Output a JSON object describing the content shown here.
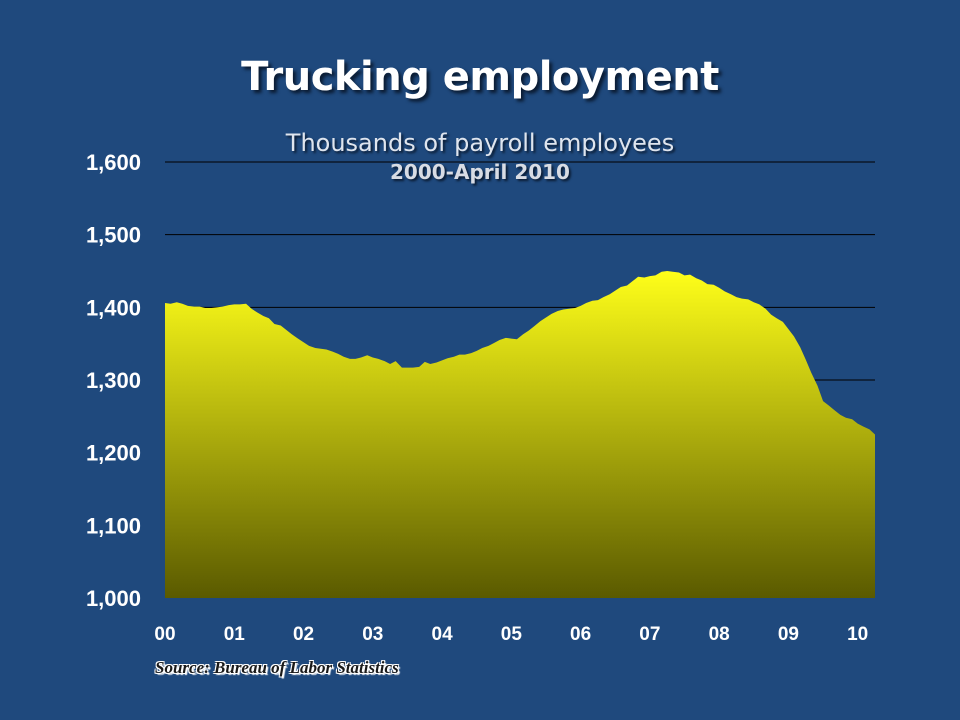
{
  "chart_data": {
    "type": "area",
    "title": "Trucking employment",
    "subtitle": "Thousands of payroll employees",
    "subtitle2": "2000-April 2010",
    "source": "Source: Bureau of Labor Statistics",
    "ylim": [
      1000,
      1600
    ],
    "yticks": [
      1000,
      1100,
      1200,
      1300,
      1400,
      1500,
      1600
    ],
    "ytick_labels": [
      "1,000",
      "1,100",
      "1,200",
      "1,300",
      "1,400",
      "1,500",
      "1,600"
    ],
    "xlim": [
      2000.0,
      2010.25
    ],
    "xticks": [
      2000,
      2001,
      2002,
      2003,
      2004,
      2005,
      2006,
      2007,
      2008,
      2009,
      2010
    ],
    "xtick_labels": [
      "00",
      "01",
      "02",
      "03",
      "04",
      "05",
      "06",
      "07",
      "08",
      "09",
      "10"
    ],
    "grid": true,
    "fill_colors": {
      "top": "#ffff19",
      "bottom": "#5a5a00"
    },
    "series": [
      {
        "x": [
          2000.0,
          2000.08,
          2000.17,
          2000.25,
          2000.33,
          2000.42,
          2000.5,
          2000.58,
          2000.67,
          2000.75,
          2000.83,
          2000.92,
          2001.0,
          2001.08,
          2001.17,
          2001.25,
          2001.33,
          2001.42,
          2001.5,
          2001.58,
          2001.67,
          2001.75,
          2001.83,
          2001.92,
          2002.0,
          2002.08,
          2002.17,
          2002.25,
          2002.33,
          2002.42,
          2002.5,
          2002.58,
          2002.67,
          2002.75,
          2002.83,
          2002.92,
          2003.0,
          2003.08,
          2003.17,
          2003.25,
          2003.33,
          2003.42,
          2003.5,
          2003.58,
          2003.67,
          2003.75,
          2003.83,
          2003.92,
          2004.0,
          2004.08,
          2004.17,
          2004.25,
          2004.33,
          2004.42,
          2004.5,
          2004.58,
          2004.67,
          2004.75,
          2004.83,
          2004.92,
          2005.0,
          2005.08,
          2005.17,
          2005.25,
          2005.33,
          2005.42,
          2005.5,
          2005.58,
          2005.67,
          2005.75,
          2005.83,
          2005.92,
          2006.0,
          2006.08,
          2006.17,
          2006.25,
          2006.33,
          2006.42,
          2006.5,
          2006.58,
          2006.67,
          2006.75,
          2006.83,
          2006.92,
          2007.0,
          2007.08,
          2007.17,
          2007.25,
          2007.33,
          2007.42,
          2007.5,
          2007.58,
          2007.67,
          2007.75,
          2007.83,
          2007.92,
          2008.0,
          2008.08,
          2008.17,
          2008.25,
          2008.33,
          2008.42,
          2008.5,
          2008.58,
          2008.67,
          2008.75,
          2008.83,
          2008.92,
          2009.0,
          2009.08,
          2009.17,
          2009.25,
          2009.33,
          2009.42,
          2009.5,
          2009.58,
          2009.67,
          2009.75,
          2009.83,
          2009.92,
          2010.0,
          2010.08,
          2010.17,
          2010.25
        ],
        "values": [
          1406,
          1405,
          1407,
          1405,
          1402,
          1401,
          1401,
          1399,
          1399,
          1400,
          1401,
          1403,
          1404,
          1404,
          1405,
          1398,
          1393,
          1388,
          1385,
          1377,
          1375,
          1369,
          1363,
          1357,
          1352,
          1347,
          1344,
          1343,
          1342,
          1339,
          1336,
          1332,
          1329,
          1329,
          1331,
          1334,
          1331,
          1329,
          1326,
          1322,
          1326,
          1317,
          1317,
          1317,
          1318,
          1325,
          1322,
          1324,
          1327,
          1330,
          1332,
          1335,
          1335,
          1337,
          1340,
          1344,
          1347,
          1351,
          1355,
          1358,
          1357,
          1356,
          1363,
          1368,
          1374,
          1381,
          1386,
          1391,
          1395,
          1397,
          1398,
          1399,
          1402,
          1406,
          1409,
          1410,
          1414,
          1418,
          1423,
          1428,
          1430,
          1436,
          1442,
          1441,
          1443,
          1444,
          1449,
          1450,
          1449,
          1448,
          1444,
          1445,
          1440,
          1437,
          1432,
          1431,
          1427,
          1422,
          1418,
          1414,
          1412,
          1411,
          1407,
          1404,
          1398,
          1390,
          1385,
          1380,
          1370,
          1360,
          1345,
          1328,
          1310,
          1292,
          1271,
          1265,
          1258,
          1252,
          1248,
          1246,
          1240,
          1236,
          1232,
          1225
        ]
      }
    ]
  }
}
